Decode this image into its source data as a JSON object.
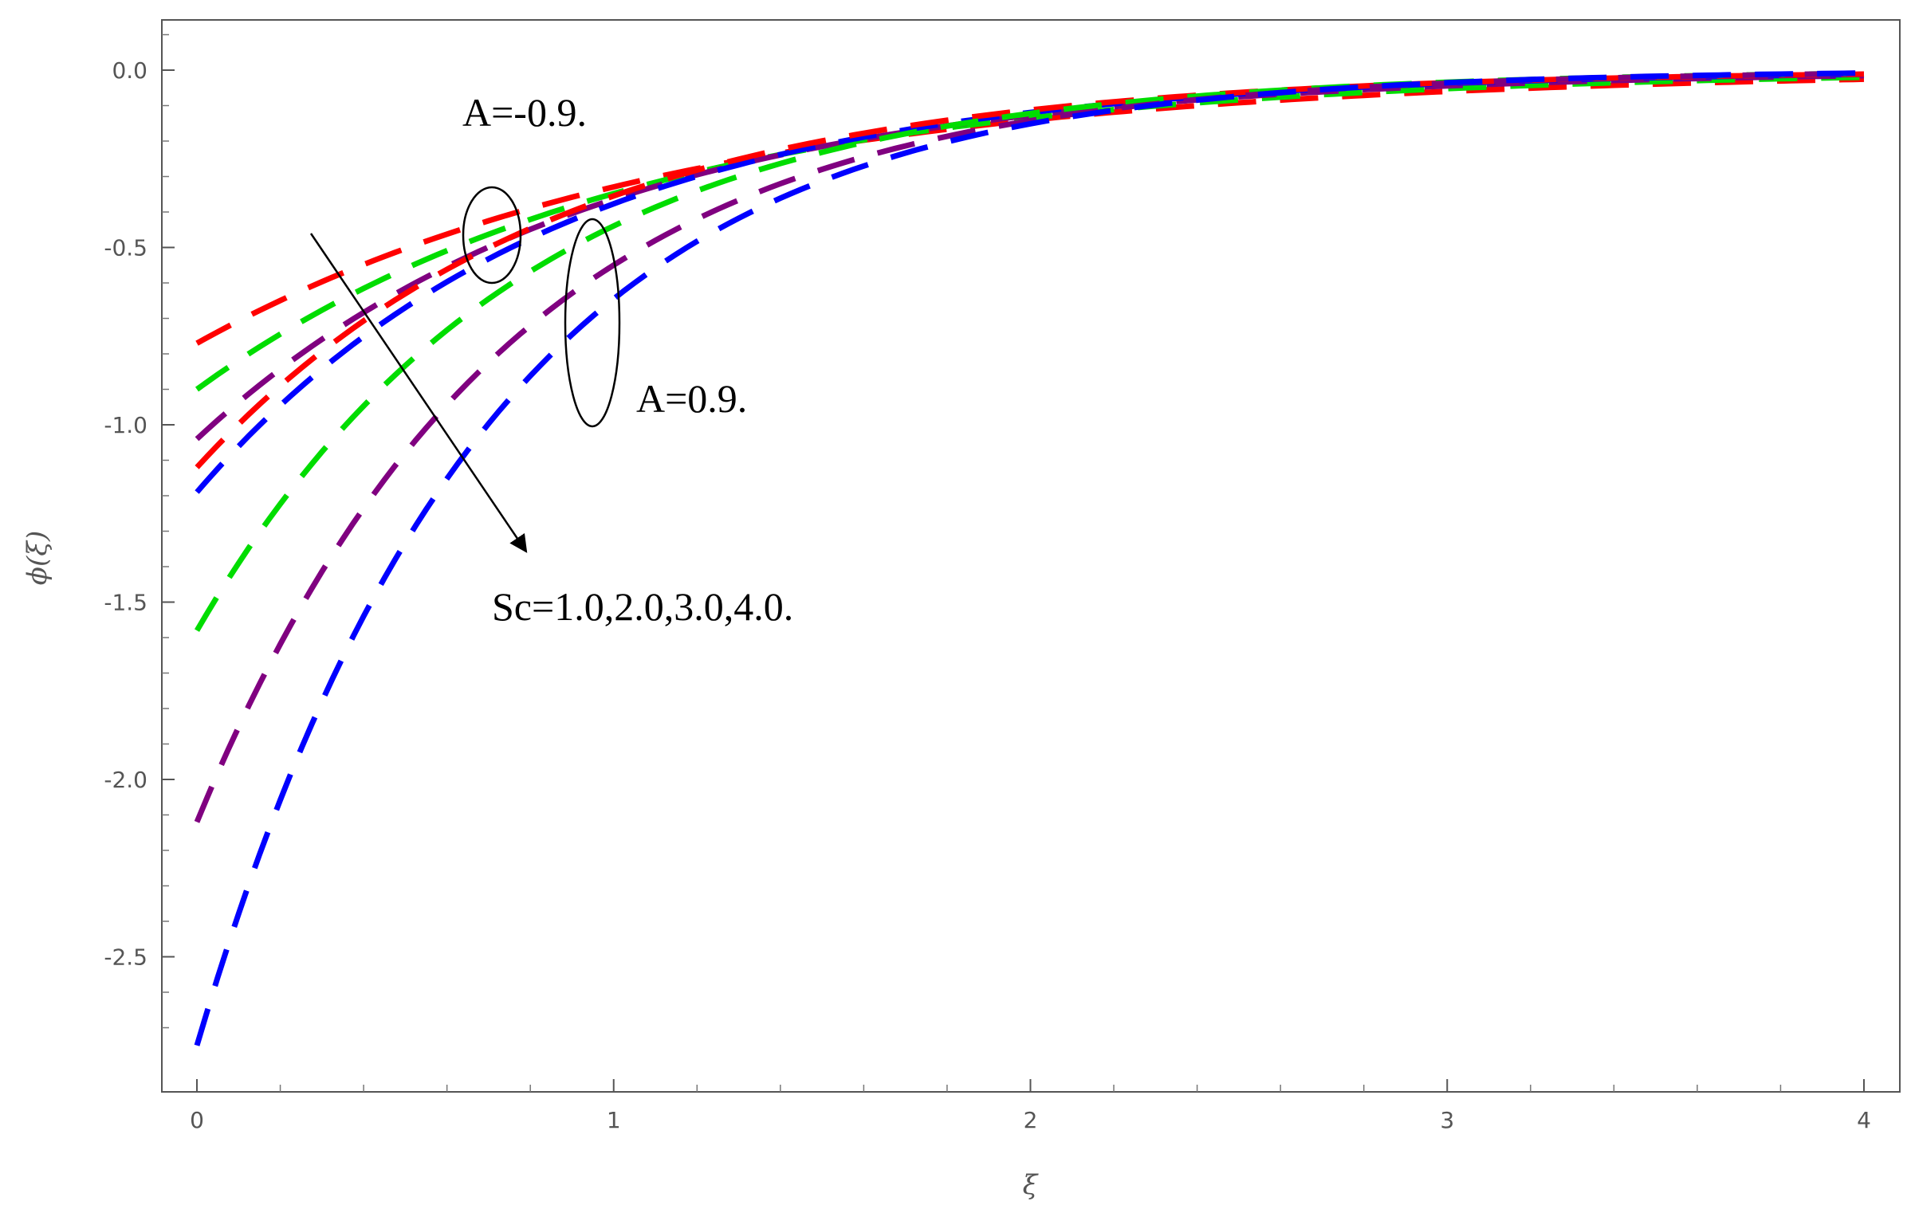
{
  "chart_data": {
    "type": "line",
    "title": "",
    "xlabel": "ξ",
    "ylabel": "ϕ(ξ)",
    "xlim": [
      0,
      4
    ],
    "ylim": [
      -2.85,
      0.15
    ],
    "x_ticks": [
      "0",
      "1",
      "2",
      "3",
      "4"
    ],
    "y_ticks": [
      "0.0",
      "-0.5",
      "-1.0",
      "-1.5",
      "-2.0",
      "-2.5"
    ],
    "x_tick_values": [
      0,
      1,
      2,
      3,
      4
    ],
    "y_tick_values": [
      0,
      -0.5,
      -1.0,
      -1.5,
      -2.0,
      -2.5
    ],
    "grid": false,
    "line_style": "dashed",
    "series": [
      {
        "color": "#ff0000",
        "group": "A=-0.9",
        "values_at_x0": -0.77,
        "decay": 0.85
      },
      {
        "color": "#00dd00",
        "group": "A=-0.9",
        "values_at_x0": -0.9,
        "decay": 0.95
      },
      {
        "color": "#800080",
        "group": "A=-0.9",
        "values_at_x0": -1.04,
        "decay": 1.05
      },
      {
        "color": "#0000ff",
        "group": "A=-0.9",
        "values_at_x0": -1.19,
        "decay": 1.15
      },
      {
        "color": "#ff0000",
        "group": "A=0.9",
        "values_at_x0": -1.12,
        "decay": 1.15
      },
      {
        "color": "#00dd00",
        "group": "A=0.9",
        "values_at_x0": -1.58,
        "decay": 1.28
      },
      {
        "color": "#800080",
        "group": "A=0.9",
        "values_at_x0": -2.12,
        "decay": 1.35
      },
      {
        "color": "#0000ff",
        "group": "A=0.9",
        "values_at_x0": -2.75,
        "decay": 1.45
      }
    ],
    "annotations": [
      {
        "text": "A=-0.9."
      },
      {
        "text": "A=0.9."
      },
      {
        "text": "Sc=1.0,2.0,3.0,4.0."
      }
    ]
  }
}
